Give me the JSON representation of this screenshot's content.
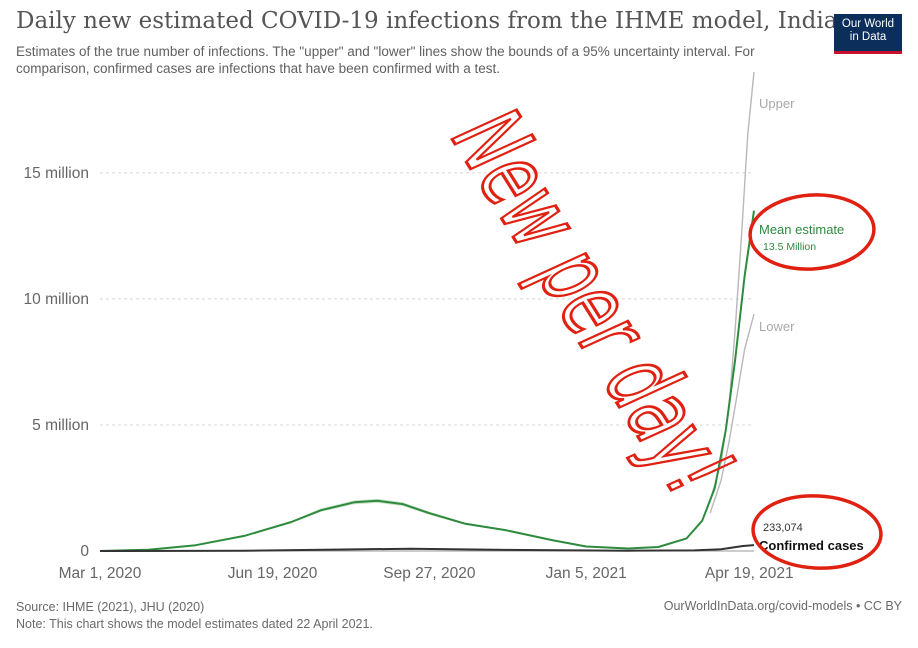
{
  "header": {
    "title": "Daily new estimated COVID-19 infections from the IHME model, India",
    "subtitle": "Estimates of the true number of infections. The \"upper\" and \"lower\" lines show the bounds of a 95% uncertainty interval. For comparison, confirmed cases are infections that have been confirmed with a test.",
    "logo_line1": "Our World",
    "logo_line2": "in Data"
  },
  "footer": {
    "source": "Source: IHME (2021), JHU (2020)",
    "note": "Note: This chart shows the model estimates dated 22 April 2021.",
    "credit": "OurWorldInData.org/covid-models • CC BY"
  },
  "annotations": {
    "handwriting": "New per day!",
    "mean_value_label": "13.5 Million",
    "confirmed_value_label": "233,074",
    "ink_color": "#e02010"
  },
  "chart_data": {
    "type": "line",
    "title": "Daily new estimated COVID-19 infections from the IHME model, India",
    "xlabel": "",
    "ylabel": "",
    "ylim": [
      0,
      19000000
    ],
    "xlim": [
      "2020-03-01",
      "2021-04-22"
    ],
    "grid": "horizontal dashed",
    "legend": "inline labels at line ends (right)",
    "y_ticks": [
      {
        "value": 0,
        "label": "0"
      },
      {
        "value": 5000000,
        "label": "5 million"
      },
      {
        "value": 10000000,
        "label": "10 million"
      },
      {
        "value": 15000000,
        "label": "15 million"
      }
    ],
    "x_ticks": [
      {
        "value": "2020-03-01",
        "label": "Mar 1, 2020"
      },
      {
        "value": "2020-06-19",
        "label": "Jun 19, 2020"
      },
      {
        "value": "2020-09-27",
        "label": "Sep 27, 2020"
      },
      {
        "value": "2021-01-05",
        "label": "Jan 5, 2021"
      },
      {
        "value": "2021-04-19",
        "label": "Apr 19, 2021"
      }
    ],
    "series": [
      {
        "name": "Upper",
        "color": "#b8b8b8",
        "points": [
          [
            "2021-03-25",
            2000000
          ],
          [
            "2021-04-01",
            3500000
          ],
          [
            "2021-04-06",
            5700000
          ],
          [
            "2021-04-10",
            8800000
          ],
          [
            "2021-04-14",
            12500000
          ],
          [
            "2021-04-18",
            16500000
          ],
          [
            "2021-04-22",
            19000000
          ]
        ]
      },
      {
        "name": "Mean estimate",
        "color": "#2e8b3e",
        "points": [
          [
            "2020-03-01",
            0
          ],
          [
            "2020-04-01",
            50000
          ],
          [
            "2020-05-01",
            230000
          ],
          [
            "2020-06-01",
            600000
          ],
          [
            "2020-07-01",
            1150000
          ],
          [
            "2020-07-20",
            1620000
          ],
          [
            "2020-08-10",
            1930000
          ],
          [
            "2020-08-25",
            1990000
          ],
          [
            "2020-09-10",
            1860000
          ],
          [
            "2020-09-27",
            1500000
          ],
          [
            "2020-10-20",
            1080000
          ],
          [
            "2020-11-15",
            820000
          ],
          [
            "2020-12-15",
            420000
          ],
          [
            "2021-01-05",
            180000
          ],
          [
            "2021-02-01",
            100000
          ],
          [
            "2021-02-20",
            160000
          ],
          [
            "2021-03-10",
            500000
          ],
          [
            "2021-03-20",
            1200000
          ],
          [
            "2021-03-28",
            2500000
          ],
          [
            "2021-04-04",
            4800000
          ],
          [
            "2021-04-10",
            7600000
          ],
          [
            "2021-04-16",
            10900000
          ],
          [
            "2021-04-22",
            13500000
          ]
        ]
      },
      {
        "name": "Lower",
        "color": "#b8b8b8",
        "points": [
          [
            "2021-03-25",
            1500000
          ],
          [
            "2021-04-01",
            2800000
          ],
          [
            "2021-04-06",
            4300000
          ],
          [
            "2021-04-11",
            6100000
          ],
          [
            "2021-04-16",
            8000000
          ],
          [
            "2021-04-22",
            9400000
          ]
        ]
      },
      {
        "name": "Confirmed cases",
        "color": "#333333",
        "points": [
          [
            "2020-03-01",
            0
          ],
          [
            "2020-06-01",
            8000
          ],
          [
            "2020-09-15",
            92000
          ],
          [
            "2020-11-15",
            45000
          ],
          [
            "2021-02-01",
            11000
          ],
          [
            "2021-03-15",
            25000
          ],
          [
            "2021-04-01",
            72000
          ],
          [
            "2021-04-15",
            200000
          ],
          [
            "2021-04-22",
            233074
          ]
        ]
      }
    ]
  }
}
